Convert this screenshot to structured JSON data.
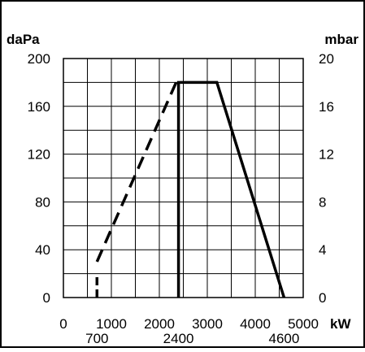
{
  "chart_data": {
    "type": "line",
    "title": "",
    "xlabel": "kW",
    "ylabel_left": "daPa",
    "ylabel_right": "mbar",
    "xlim": [
      0,
      5000
    ],
    "ylim": [
      0,
      200
    ],
    "ylim_right": [
      0,
      20
    ],
    "grid": true,
    "x_ticks": [
      0,
      1000,
      2000,
      3000,
      4000,
      5000
    ],
    "x_tick_labels": [
      "0",
      "1000",
      "2000",
      "3000",
      "4000",
      "5000"
    ],
    "y_ticks_left": [
      0,
      40,
      80,
      120,
      160,
      200
    ],
    "y_tick_labels_left": [
      "0",
      "40",
      "80",
      "120",
      "160",
      "200"
    ],
    "y_tick_labels_right": [
      "0",
      "4",
      "8",
      "12",
      "16",
      "20"
    ],
    "annotations": [
      {
        "x": 700,
        "label": "700"
      },
      {
        "x": 2400,
        "label": "2400"
      },
      {
        "x": 4600,
        "label": "4600"
      }
    ],
    "series": [
      {
        "style": "dashed",
        "x": [
          700,
          2350
        ],
        "y": [
          30,
          180
        ]
      },
      {
        "style": "solid",
        "x": [
          700,
          700,
          2400,
          2400,
          3200,
          4600
        ],
        "y": [
          0,
          18,
          0,
          180,
          180,
          0
        ]
      }
    ]
  }
}
